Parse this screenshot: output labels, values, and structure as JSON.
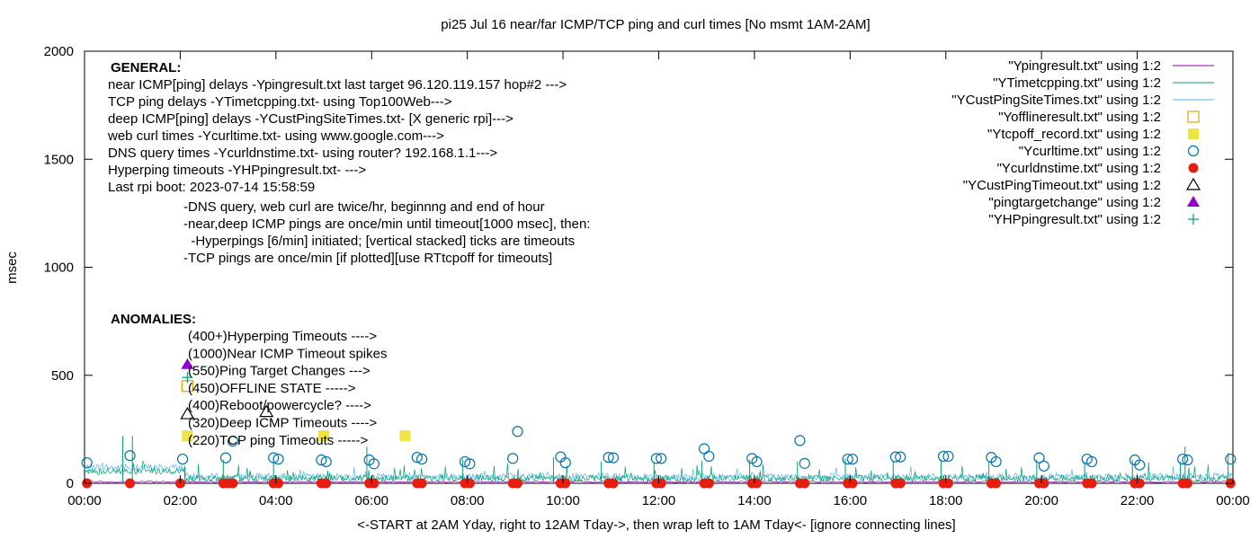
{
  "chart_data": {
    "type": "line",
    "title": "pi25 Jul 16  near/far ICMP/TCP ping and curl times [No msmt 1AM-2AM]",
    "xlabel": "<-START at 2AM Yday, right to 12AM Tday->, then wrap left to 1AM Tday<- [ignore connecting lines]",
    "ylabel": "msec",
    "xlim": [
      0,
      24
    ],
    "ylim": [
      0,
      2000
    ],
    "x_ticks": [
      "00:00",
      "02:00",
      "04:00",
      "06:00",
      "08:00",
      "10:00",
      "12:00",
      "14:00",
      "16:00",
      "18:00",
      "20:00",
      "22:00",
      "00:00"
    ],
    "y_ticks": [
      "0",
      "500",
      "1000",
      "1500",
      "2000"
    ],
    "grid": false,
    "legend_position": "top-right",
    "legend": [
      {
        "label": "\"Ypingresult.txt\" using 1:2",
        "style": "line",
        "color": "#8b00a8"
      },
      {
        "label": "\"YTimetcpping.txt\" using 1:2",
        "style": "line",
        "color": "#009e73"
      },
      {
        "label": "\"YCustPingSiteTimes.txt\" using 1:2",
        "style": "line",
        "color": "#56b4e9"
      },
      {
        "label": "\"Yofflineresult.txt\" using 1:2",
        "style": "open-square",
        "color": "#e69f00"
      },
      {
        "label": "\"Ytcpoff_record.txt\" using 1:2",
        "style": "filled-square",
        "color": "#f0e442"
      },
      {
        "label": "\"Ycurltime.txt\" using 1:2",
        "style": "open-circle",
        "color": "#0072b2"
      },
      {
        "label": "\"Ycurldnstime.txt\" using 1:2",
        "style": "filled-circle",
        "color": "#e51e10"
      },
      {
        "label": "\"YCustPingTimeout.txt\" using 1:2",
        "style": "open-triangle",
        "color": "#000000"
      },
      {
        "label": "\"pingtargetchange\" using 1:2",
        "style": "filled-triangle",
        "color": "#9400d3"
      },
      {
        "label": "\"YHPpingresult.txt\" using 1:2",
        "style": "plus",
        "color": "#009e73"
      }
    ],
    "notes_general": {
      "heading": "GENERAL:",
      "lines": [
        "near ICMP[ping] delays -Ypingresult.txt last target 96.120.119.157 hop#2 --->",
        "TCP ping delays -YTimetcpping.txt- using Top100Web--->",
        "deep ICMP[ping] delays -YCustPingSiteTimes.txt- [X generic rpi]--->",
        "web curl times -Ycurltime.txt- using www.google.com--->",
        "DNS query times -Ycurldnstime.txt- using router? 192.168.1.1--->",
        "Hyperping timeouts -YHPpingresult.txt- --->",
        "Last rpi boot: 2023-07-14 15:58:59"
      ],
      "indented": [
        "-DNS query, web curl are twice/hr, beginnng and end of hour",
        "-near,deep ICMP pings are once/min until timeout[1000 msec], then:",
        "  -Hyperpings [6/min] initiated; [vertical stacked] ticks are timeouts",
        "-TCP pings are once/min [if plotted][use RTtcpoff for timeouts]"
      ]
    },
    "notes_anomalies": {
      "heading": "ANOMALIES:",
      "lines": [
        "(400+)Hyperping Timeouts ---->",
        "(1000)Near ICMP Timeout spikes",
        "(550)Ping Target Changes --->",
        "(450)OFFLINE STATE ----->",
        "(400)Reboot/powercycle? ---->",
        "(320)Deep ICMP Timeouts ---->",
        "(220)TCP ping Timeouts ----->"
      ]
    },
    "marker_series": {
      "ping_target_change": [
        {
          "x": 2.15,
          "y": 550
        }
      ],
      "hyperping_timeout": [
        {
          "x": 2.15,
          "y": 490
        }
      ],
      "offline": [
        {
          "x": 2.15,
          "y": 450
        }
      ],
      "deep_icmp_timeout": [
        {
          "x": 2.15,
          "y": 320
        },
        {
          "x": 3.8,
          "y": 330
        }
      ],
      "tcp_ping_timeout": [
        {
          "x": 2.15,
          "y": 220
        },
        {
          "x": 5.0,
          "y": 220
        },
        {
          "x": 6.7,
          "y": 220
        }
      ],
      "curl": [
        {
          "x": 0.05,
          "y": 95
        },
        {
          "x": 0.95,
          "y": 128
        },
        {
          "x": 2.05,
          "y": 112
        },
        {
          "x": 2.95,
          "y": 118
        },
        {
          "x": 3.1,
          "y": 195
        },
        {
          "x": 3.95,
          "y": 118
        },
        {
          "x": 4.05,
          "y": 112
        },
        {
          "x": 4.95,
          "y": 108
        },
        {
          "x": 5.05,
          "y": 100
        },
        {
          "x": 5.95,
          "y": 108
        },
        {
          "x": 6.05,
          "y": 90
        },
        {
          "x": 6.95,
          "y": 120
        },
        {
          "x": 7.05,
          "y": 112
        },
        {
          "x": 7.95,
          "y": 100
        },
        {
          "x": 8.05,
          "y": 90
        },
        {
          "x": 8.95,
          "y": 115
        },
        {
          "x": 9.05,
          "y": 240
        },
        {
          "x": 9.95,
          "y": 122
        },
        {
          "x": 10.05,
          "y": 95
        },
        {
          "x": 10.95,
          "y": 120
        },
        {
          "x": 11.05,
          "y": 118
        },
        {
          "x": 11.95,
          "y": 115
        },
        {
          "x": 12.05,
          "y": 115
        },
        {
          "x": 12.95,
          "y": 160
        },
        {
          "x": 13.05,
          "y": 125
        },
        {
          "x": 13.95,
          "y": 115
        },
        {
          "x": 14.05,
          "y": 100
        },
        {
          "x": 14.95,
          "y": 198
        },
        {
          "x": 15.05,
          "y": 92
        },
        {
          "x": 15.95,
          "y": 112
        },
        {
          "x": 16.05,
          "y": 112
        },
        {
          "x": 16.95,
          "y": 122
        },
        {
          "x": 17.05,
          "y": 122
        },
        {
          "x": 17.95,
          "y": 125
        },
        {
          "x": 18.05,
          "y": 125
        },
        {
          "x": 18.95,
          "y": 120
        },
        {
          "x": 19.05,
          "y": 100
        },
        {
          "x": 19.95,
          "y": 118
        },
        {
          "x": 20.05,
          "y": 80
        },
        {
          "x": 20.95,
          "y": 112
        },
        {
          "x": 21.05,
          "y": 100
        },
        {
          "x": 21.95,
          "y": 108
        },
        {
          "x": 22.05,
          "y": 85
        },
        {
          "x": 22.95,
          "y": 112
        },
        {
          "x": 23.05,
          "y": 108
        },
        {
          "x": 23.95,
          "y": 112
        }
      ],
      "dns": [
        {
          "x": 0.05,
          "y": 0
        },
        {
          "x": 0.95,
          "y": 0
        },
        {
          "x": 2.0,
          "y": 0
        },
        {
          "x": 2.9,
          "y": 0
        },
        {
          "x": 3.0,
          "y": 0
        },
        {
          "x": 3.1,
          "y": 0
        },
        {
          "x": 3.95,
          "y": 0
        },
        {
          "x": 4.05,
          "y": 0
        },
        {
          "x": 4.95,
          "y": 0
        },
        {
          "x": 5.05,
          "y": 0
        },
        {
          "x": 5.95,
          "y": 0
        },
        {
          "x": 6.05,
          "y": 0
        },
        {
          "x": 6.95,
          "y": 0
        },
        {
          "x": 7.05,
          "y": 0
        },
        {
          "x": 7.95,
          "y": 0
        },
        {
          "x": 8.05,
          "y": 0
        },
        {
          "x": 8.95,
          "y": 0
        },
        {
          "x": 9.05,
          "y": 0
        },
        {
          "x": 9.95,
          "y": 0
        },
        {
          "x": 10.05,
          "y": 0
        },
        {
          "x": 10.95,
          "y": 0
        },
        {
          "x": 11.05,
          "y": 0
        },
        {
          "x": 11.95,
          "y": 0
        },
        {
          "x": 12.05,
          "y": 0
        },
        {
          "x": 12.95,
          "y": 0
        },
        {
          "x": 13.05,
          "y": 0
        },
        {
          "x": 13.95,
          "y": 0
        },
        {
          "x": 14.05,
          "y": 0
        },
        {
          "x": 14.95,
          "y": 0
        },
        {
          "x": 15.05,
          "y": 0
        },
        {
          "x": 15.95,
          "y": 0
        },
        {
          "x": 16.05,
          "y": 0
        },
        {
          "x": 16.95,
          "y": 0
        },
        {
          "x": 17.05,
          "y": 0
        },
        {
          "x": 17.95,
          "y": 0
        },
        {
          "x": 18.05,
          "y": 0
        },
        {
          "x": 18.95,
          "y": 0
        },
        {
          "x": 19.05,
          "y": 0
        },
        {
          "x": 19.95,
          "y": 0
        },
        {
          "x": 20.05,
          "y": 0
        },
        {
          "x": 20.95,
          "y": 0
        },
        {
          "x": 21.05,
          "y": 0
        },
        {
          "x": 21.95,
          "y": 0
        },
        {
          "x": 22.05,
          "y": 0
        },
        {
          "x": 22.95,
          "y": 0
        },
        {
          "x": 23.05,
          "y": 0
        },
        {
          "x": 23.95,
          "y": 0
        }
      ],
      "tcp_spikes": [
        {
          "x": 0.8,
          "y": 220
        },
        {
          "x": 1.0,
          "y": 220
        },
        {
          "x": 2.1,
          "y": 80
        },
        {
          "x": 2.9,
          "y": 110
        },
        {
          "x": 3.95,
          "y": 100
        },
        {
          "x": 5.9,
          "y": 170
        },
        {
          "x": 7.9,
          "y": 110
        },
        {
          "x": 9.8,
          "y": 120
        },
        {
          "x": 10.8,
          "y": 100
        },
        {
          "x": 11.9,
          "y": 100
        },
        {
          "x": 12.9,
          "y": 105
        },
        {
          "x": 13.9,
          "y": 110
        },
        {
          "x": 14.9,
          "y": 100
        },
        {
          "x": 15.9,
          "y": 115
        },
        {
          "x": 16.9,
          "y": 100
        },
        {
          "x": 17.9,
          "y": 110
        },
        {
          "x": 18.9,
          "y": 100
        },
        {
          "x": 19.9,
          "y": 110
        },
        {
          "x": 20.9,
          "y": 100
        },
        {
          "x": 21.9,
          "y": 110
        },
        {
          "x": 22.9,
          "y": 100
        },
        {
          "x": 23.0,
          "y": 170
        },
        {
          "x": 23.9,
          "y": 140
        }
      ]
    }
  }
}
